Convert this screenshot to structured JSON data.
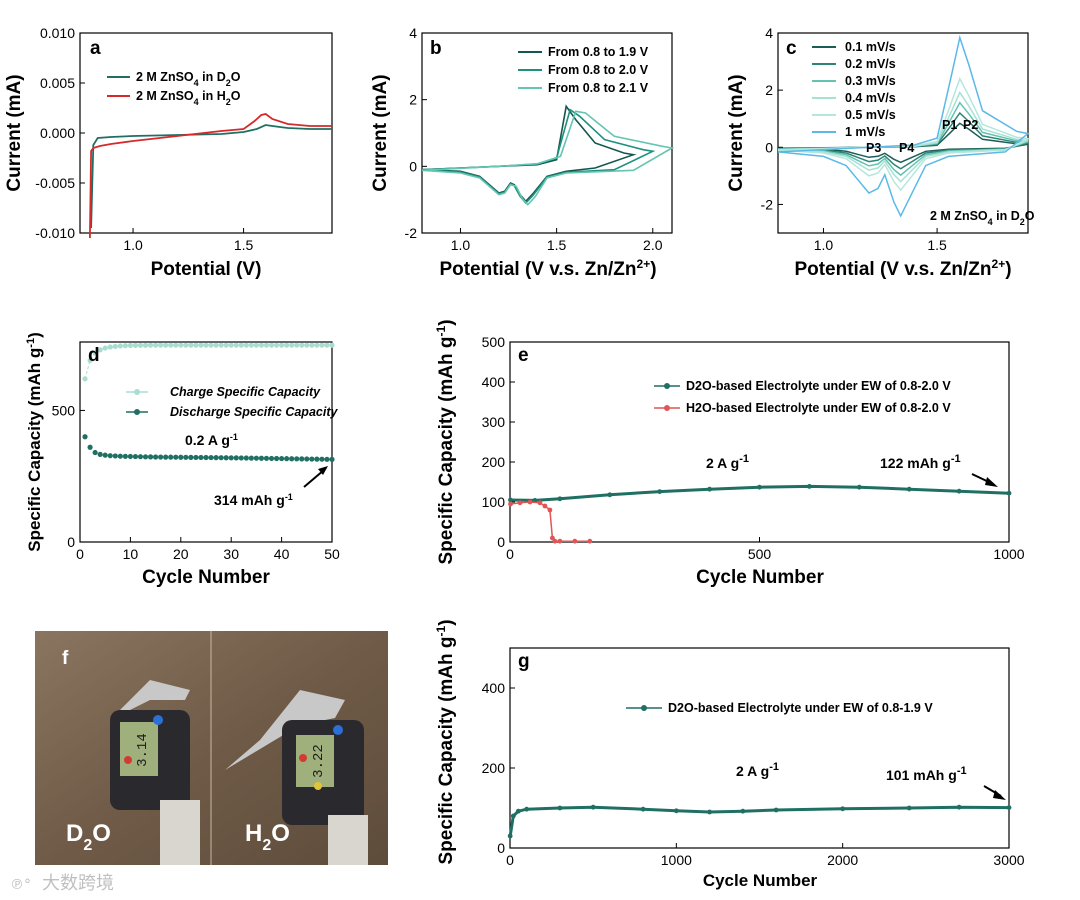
{
  "chart_data": [
    {
      "panel": "a",
      "type": "line",
      "xlabel": "Potential (V)",
      "ylabel": "Current (mA)",
      "xlim": [
        0.76,
        1.9
      ],
      "ylim": [
        -0.01,
        0.01
      ],
      "xticks": [
        "1.0",
        "1.5"
      ],
      "yticks": [
        "0.010",
        "0.005",
        "0.000",
        "-0.005",
        "-0.010"
      ],
      "series": [
        {
          "name": "2 M ZnSO4 in D2O",
          "sub": "4",
          "sub2": "2",
          "color": "#1f6f63",
          "x": [
            0.81,
            0.82,
            0.84,
            0.9,
            1.0,
            1.2,
            1.4,
            1.5,
            1.56,
            1.6,
            1.63,
            1.7,
            1.8,
            1.9
          ],
          "y": [
            -0.0095,
            -0.0012,
            -0.0005,
            -0.0004,
            -0.0003,
            -0.0002,
            -0.0001,
            0.0001,
            0.0004,
            0.0008,
            0.0007,
            0.0005,
            0.0004,
            0.0004
          ]
        },
        {
          "name": "2 M ZnSO4 in H2O",
          "sub": "4",
          "sub2": "2",
          "color": "#d62a2a",
          "x": [
            0.805,
            0.81,
            0.82,
            0.85,
            0.9,
            1.0,
            1.2,
            1.4,
            1.5,
            1.55,
            1.58,
            1.6,
            1.63,
            1.7,
            1.8,
            1.9
          ],
          "y": [
            -0.0105,
            -0.0018,
            -0.0015,
            -0.0013,
            -0.0011,
            -0.0008,
            -0.0003,
            0.0002,
            0.0004,
            0.0012,
            0.0018,
            0.0019,
            0.0014,
            0.0009,
            0.0007,
            0.0007
          ]
        }
      ]
    },
    {
      "panel": "b",
      "type": "line",
      "xlabel": "Potential (V v.s. Zn/Zn",
      "xlabel_sup": "2+",
      "xlabel_end": ")",
      "ylabel": "Current (mA)",
      "xlim": [
        0.8,
        2.1
      ],
      "ylim": [
        -2,
        4
      ],
      "xticks": [
        "1.0",
        "1.5",
        "2.0"
      ],
      "yticks": [
        "4",
        "2",
        "0",
        "-2"
      ],
      "series": [
        {
          "name": "From 0.8 to 1.9 V",
          "color": "#14574e",
          "x": [
            0.8,
            1.0,
            1.1,
            1.15,
            1.2,
            1.23,
            1.26,
            1.28,
            1.31,
            1.34,
            1.38,
            1.45,
            1.55,
            1.7,
            1.9,
            1.85,
            1.7,
            1.6,
            1.55,
            1.5,
            1.4,
            1.2,
            1.0,
            0.8
          ],
          "y": [
            -0.1,
            -0.15,
            -0.3,
            -0.55,
            -0.8,
            -0.75,
            -0.5,
            -0.55,
            -0.85,
            -1.05,
            -0.8,
            -0.3,
            -0.15,
            -0.05,
            0.35,
            0.4,
            0.7,
            1.4,
            1.8,
            0.2,
            0.05,
            0.0,
            -0.05,
            -0.1
          ]
        },
        {
          "name": "From 0.8 to 2.0 V",
          "color": "#1f8f7e",
          "x": [
            0.8,
            1.0,
            1.1,
            1.15,
            1.2,
            1.23,
            1.26,
            1.28,
            1.31,
            1.34,
            1.38,
            1.45,
            1.55,
            1.8,
            2.0,
            1.95,
            1.75,
            1.62,
            1.57,
            1.5,
            1.4,
            1.2,
            1.0,
            0.8
          ],
          "y": [
            -0.1,
            -0.17,
            -0.32,
            -0.58,
            -0.82,
            -0.78,
            -0.52,
            -0.58,
            -0.9,
            -1.1,
            -0.85,
            -0.32,
            -0.18,
            -0.1,
            0.45,
            0.5,
            0.8,
            1.5,
            1.7,
            0.25,
            0.07,
            0.0,
            -0.05,
            -0.1
          ]
        },
        {
          "name": "From 0.8 to 2.1 V",
          "color": "#63c5b2",
          "x": [
            0.8,
            1.0,
            1.1,
            1.15,
            1.2,
            1.23,
            1.26,
            1.29,
            1.32,
            1.35,
            1.39,
            1.45,
            1.55,
            1.9,
            2.1,
            2.05,
            1.8,
            1.65,
            1.6,
            1.52,
            1.4,
            1.2,
            1.0,
            0.8
          ],
          "y": [
            -0.12,
            -0.2,
            -0.35,
            -0.6,
            -0.85,
            -0.8,
            -0.55,
            -0.6,
            -0.95,
            -1.15,
            -0.9,
            -0.35,
            -0.2,
            -0.12,
            0.55,
            0.6,
            0.9,
            1.6,
            1.65,
            0.3,
            0.08,
            0.0,
            -0.06,
            -0.12
          ]
        }
      ]
    },
    {
      "panel": "c",
      "type": "line",
      "xlabel": "Potential (V v.s. Zn/Zn",
      "xlabel_sup": "2+",
      "xlabel_end": ")",
      "ylabel": "Current (mA)",
      "xlim": [
        0.8,
        1.9
      ],
      "ylim": [
        -3,
        4
      ],
      "xticks": [
        "1.0",
        "1.5"
      ],
      "yticks": [
        "4",
        "2",
        "0",
        "-2"
      ],
      "annotation": "2 M ZnSO4 in D2O",
      "peaks": [
        "P1",
        "P2",
        "P3",
        "P4"
      ],
      "series": [
        {
          "name": "0.1 mV/s",
          "color": "#1d5d55",
          "scale": 0.35
        },
        {
          "name": "0.2 mV/s",
          "color": "#2e8577",
          "scale": 0.5
        },
        {
          "name": "0.3 mV/s",
          "color": "#62c3b1",
          "scale": 0.65
        },
        {
          "name": "0.4 mV/s",
          "color": "#a6e1d2",
          "scale": 0.8
        },
        {
          "name": "0.5 mV/s",
          "color": "#b5e6de",
          "scale": 1.0
        },
        {
          "name": "1 mV/s",
          "color": "#5bb9e8",
          "scale": 1.6
        }
      ]
    },
    {
      "panel": "d",
      "type": "scatter",
      "xlabel": "Cycle Number",
      "ylabel": "Specific Capacity (mAh g",
      "ylabel_sup": "-1",
      "ylabel_end": ")",
      "xlim": [
        0,
        50
      ],
      "ylim": [
        0,
        760
      ],
      "xticks": [
        "0",
        "10",
        "20",
        "30",
        "40",
        "50"
      ],
      "yticks": [
        "500",
        "0"
      ],
      "rate": "0.2 A g",
      "rate_sup": "-1",
      "final": "314 mAh g",
      "final_sup": "-1",
      "series": [
        {
          "name": "Charge Specific Capacity",
          "color": "#a8ddd0",
          "x": [
            1,
            2,
            3,
            4,
            5,
            6,
            8,
            10,
            15,
            20,
            30,
            40,
            50
          ],
          "y": [
            620,
            690,
            718,
            730,
            737,
            741,
            745,
            747,
            748,
            748,
            748,
            748,
            748
          ]
        },
        {
          "name": "Discharge Specific Capacity",
          "color": "#1f6f63",
          "x": [
            1,
            2,
            3,
            4,
            5,
            6,
            8,
            10,
            15,
            20,
            30,
            40,
            50
          ],
          "y": [
            400,
            360,
            340,
            333,
            330,
            328,
            326,
            325,
            323,
            322,
            320,
            317,
            314
          ]
        }
      ]
    },
    {
      "panel": "e",
      "type": "scatter",
      "xlabel": "Cycle Number",
      "ylabel": "Specific Capacity (mAh g",
      "ylabel_sup": "-1",
      "ylabel_end": ")",
      "xlim": [
        0,
        1000
      ],
      "ylim": [
        0,
        500
      ],
      "xticks": [
        "0",
        "500",
        "1000"
      ],
      "yticks": [
        "500",
        "400",
        "300",
        "200",
        "100",
        "0"
      ],
      "rate": "2 A g",
      "rate_sup": "-1",
      "final": "122 mAh g",
      "final_sup": "-1",
      "series": [
        {
          "name": "D2O-based Electrolyte under EW of 0.8-2.0 V",
          "color": "#1f6f63",
          "x": [
            1,
            50,
            100,
            200,
            300,
            400,
            500,
            600,
            700,
            800,
            900,
            1000
          ],
          "y": [
            105,
            104,
            108,
            118,
            126,
            132,
            137,
            139,
            137,
            132,
            127,
            122
          ]
        },
        {
          "name": "H2O-based Electrolyte under EW of 0.8-2.0 V",
          "color": "#e05555",
          "x": [
            1,
            20,
            40,
            60,
            70,
            80,
            85,
            90,
            100,
            130,
            160
          ],
          "y": [
            95,
            98,
            100,
            98,
            90,
            80,
            10,
            2,
            2,
            2,
            2
          ]
        }
      ]
    },
    {
      "panel": "g",
      "type": "scatter",
      "xlabel": "Cycle Number",
      "ylabel": "Specific Capacity (mAh g",
      "ylabel_sup": "-1",
      "ylabel_end": ")",
      "xlim": [
        0,
        3000
      ],
      "ylim": [
        0,
        500
      ],
      "xticks": [
        "0",
        "1000",
        "2000",
        "3000"
      ],
      "yticks": [
        "400",
        "200",
        "0"
      ],
      "rate": "2 A g",
      "rate_sup": "-1",
      "final": "101 mAh g",
      "final_sup": "-1",
      "series": [
        {
          "name": "D2O-based Electrolyte under EW of 0.8-1.9 V",
          "color": "#1f6f63",
          "x": [
            1,
            20,
            50,
            100,
            300,
            500,
            800,
            1000,
            1200,
            1400,
            1600,
            2000,
            2400,
            2700,
            3000
          ],
          "y": [
            30,
            80,
            92,
            97,
            100,
            102,
            97,
            93,
            90,
            92,
            95,
            98,
            100,
            102,
            101
          ]
        }
      ]
    }
  ],
  "photo": {
    "panel": "f",
    "left_label": "D",
    "left_sub": "2",
    "left_end": "O",
    "right_label": "H",
    "right_sub": "2",
    "right_end": "O",
    "left_display": "3.14",
    "right_display": "3.22"
  },
  "watermark": "大数跨境"
}
